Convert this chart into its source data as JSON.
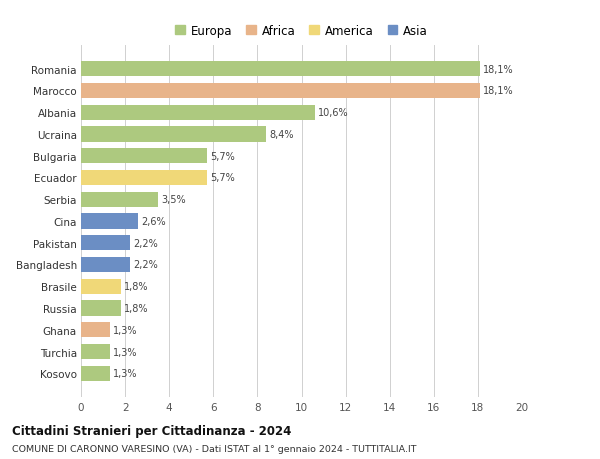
{
  "countries": [
    "Romania",
    "Marocco",
    "Albania",
    "Ucraina",
    "Bulgaria",
    "Ecuador",
    "Serbia",
    "Cina",
    "Pakistan",
    "Bangladesh",
    "Brasile",
    "Russia",
    "Ghana",
    "Turchia",
    "Kosovo"
  ],
  "values": [
    18.1,
    18.1,
    10.6,
    8.4,
    5.7,
    5.7,
    3.5,
    2.6,
    2.2,
    2.2,
    1.8,
    1.8,
    1.3,
    1.3,
    1.3
  ],
  "labels": [
    "18,1%",
    "18,1%",
    "10,6%",
    "8,4%",
    "5,7%",
    "5,7%",
    "3,5%",
    "2,6%",
    "2,2%",
    "2,2%",
    "1,8%",
    "1,8%",
    "1,3%",
    "1,3%",
    "1,3%"
  ],
  "colors": [
    "#adc97f",
    "#e8b48a",
    "#adc97f",
    "#adc97f",
    "#adc97f",
    "#f0d878",
    "#adc97f",
    "#6b8ec4",
    "#6b8ec4",
    "#6b8ec4",
    "#f0d878",
    "#adc97f",
    "#e8b48a",
    "#adc97f",
    "#adc97f"
  ],
  "legend_marker_colors": [
    "#adc97f",
    "#e8b48a",
    "#f0d878",
    "#6b8ec4"
  ],
  "legend_labels": [
    "Europa",
    "Africa",
    "America",
    "Asia"
  ],
  "xlim": [
    0,
    20
  ],
  "xticks": [
    0,
    2,
    4,
    6,
    8,
    10,
    12,
    14,
    16,
    18,
    20
  ],
  "title": "Cittadini Stranieri per Cittadinanza - 2024",
  "subtitle": "COMUNE DI CARONNO VARESINO (VA) - Dati ISTAT al 1° gennaio 2024 - TUTTITALIA.IT",
  "bg_color": "#ffffff",
  "grid_color": "#d0d0d0"
}
